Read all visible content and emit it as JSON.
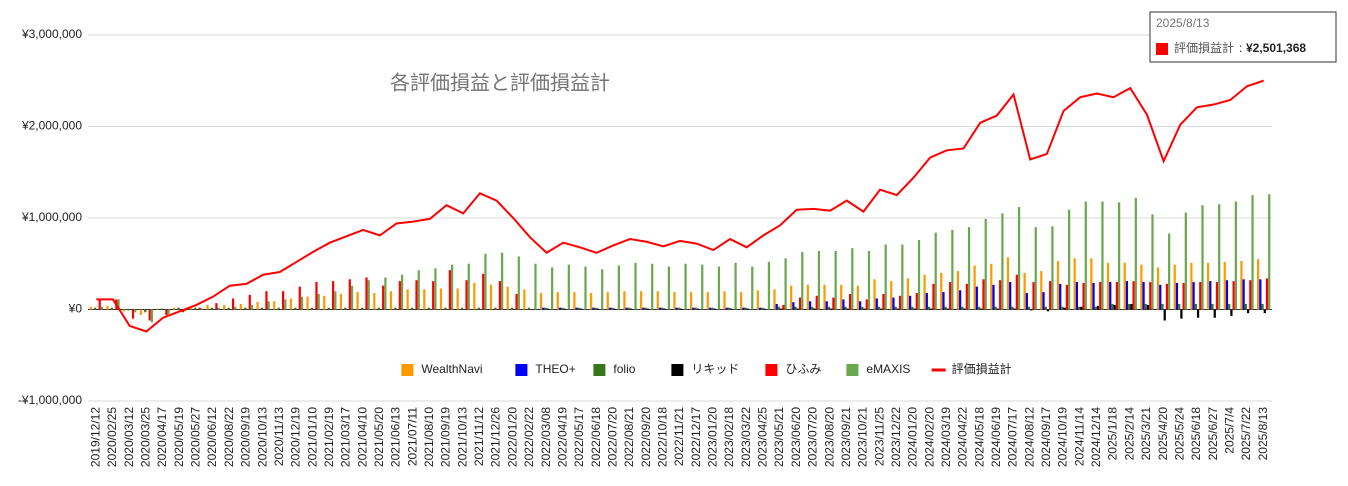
{
  "chart_data": {
    "type": "combo",
    "title": "各評価損益と評価損益計",
    "categories": [
      "2019/12/12",
      "2020/02/25",
      "2020/03/12",
      "2020/03/25",
      "2020/04/17",
      "2020/05/19",
      "2020/05/27",
      "2020/06/12",
      "2020/08/22",
      "2020/09/19",
      "2020/10/13",
      "2020/11/13",
      "2020/12/19",
      "2021/01/10",
      "2021/02/19",
      "2021/03/17",
      "2021/04/10",
      "2021/05/20",
      "2021/06/13",
      "2021/07/11",
      "2021/08/10",
      "2021/09/19",
      "2021/10/13",
      "2021/11/12",
      "2021/12/26",
      "2022/01/20",
      "2022/02/22",
      "2022/03/08",
      "2022/04/19",
      "2022/05/17",
      "2022/06/18",
      "2022/07/20",
      "2022/08/21",
      "2022/09/20",
      "2022/10/18",
      "2022/11/21",
      "2022/12/17",
      "2023/01/20",
      "2023/02/18",
      "2023/03/22",
      "2023/04/25",
      "2023/05/21",
      "2023/06/20",
      "2023/07/20",
      "2023/08/20",
      "2023/09/21",
      "2023/10/21",
      "2023/11/25",
      "2023/12/22",
      "2024/01/20",
      "2024/02/20",
      "2024/03/19",
      "2024/04/22",
      "2024/05/18",
      "2024/06/19",
      "2024/07/17",
      "2024/08/12",
      "2024/09/17",
      "2024/10/19",
      "2024/11/14",
      "2024/12/14",
      "2025/1/18",
      "2025/2/14",
      "2025/3/21",
      "2025/4/20",
      "2025/5/24",
      "2025/6/18",
      "2025/6/27",
      "2025/7/4",
      "2025/7/22",
      "2025/8/13"
    ],
    "series": [
      {
        "name": "WealthNavi",
        "color": "#ff9900",
        "kind": "bar",
        "values": [
          30000,
          40000,
          -20000,
          -60000,
          10000,
          20000,
          20000,
          50000,
          50000,
          60000,
          80000,
          90000,
          120000,
          140000,
          150000,
          170000,
          190000,
          180000,
          200000,
          220000,
          220000,
          230000,
          230000,
          290000,
          270000,
          250000,
          220000,
          180000,
          190000,
          190000,
          180000,
          190000,
          200000,
          200000,
          200000,
          190000,
          190000,
          190000,
          200000,
          190000,
          210000,
          220000,
          260000,
          270000,
          270000,
          270000,
          260000,
          330000,
          310000,
          340000,
          380000,
          400000,
          420000,
          480000,
          500000,
          570000,
          400000,
          420000,
          530000,
          560000,
          560000,
          510000,
          510000,
          490000,
          460000,
          490000,
          510000,
          510000,
          520000,
          530000,
          550000
        ]
      },
      {
        "name": "THEO+",
        "color": "#0000ff",
        "kind": "bar",
        "values": [
          0,
          0,
          0,
          0,
          0,
          0,
          0,
          0,
          0,
          0,
          0,
          0,
          0,
          0,
          0,
          0,
          0,
          0,
          0,
          0,
          0,
          0,
          0,
          0,
          0,
          0,
          0,
          20000,
          20000,
          20000,
          20000,
          20000,
          20000,
          20000,
          20000,
          20000,
          20000,
          20000,
          20000,
          20000,
          20000,
          60000,
          80000,
          90000,
          90000,
          110000,
          90000,
          120000,
          130000,
          150000,
          180000,
          190000,
          210000,
          250000,
          270000,
          300000,
          180000,
          190000,
          280000,
          300000,
          290000,
          300000,
          310000,
          300000,
          270000,
          290000,
          300000,
          310000,
          320000,
          330000,
          330000
        ]
      },
      {
        "name": "folio",
        "color": "#38761d",
        "kind": "bar",
        "values": [
          20000,
          20000,
          -10000,
          -30000,
          10000,
          20000,
          20000,
          20000,
          20000,
          20000,
          20000,
          20000,
          20000,
          20000,
          20000,
          20000,
          20000,
          20000,
          20000,
          20000,
          20000,
          20000,
          20000,
          20000,
          20000,
          20000,
          20000,
          20000,
          20000,
          20000,
          20000,
          20000,
          20000,
          20000,
          20000,
          20000,
          20000,
          20000,
          20000,
          20000,
          20000,
          30000,
          30000,
          30000,
          30000,
          30000,
          30000,
          30000,
          30000,
          30000,
          30000,
          30000,
          30000,
          30000,
          30000,
          30000,
          30000,
          30000,
          30000,
          30000,
          30000,
          60000,
          60000,
          60000,
          60000,
          60000,
          60000,
          60000,
          60000,
          60000,
          60000
        ]
      },
      {
        "name": "リキッド",
        "color": "#000000",
        "kind": "bar",
        "values": [
          0,
          0,
          0,
          0,
          0,
          0,
          0,
          0,
          0,
          0,
          0,
          0,
          0,
          0,
          0,
          0,
          0,
          0,
          0,
          0,
          0,
          0,
          0,
          0,
          0,
          0,
          0,
          10000,
          10000,
          10000,
          10000,
          10000,
          10000,
          10000,
          10000,
          10000,
          10000,
          10000,
          10000,
          10000,
          10000,
          10000,
          10000,
          10000,
          10000,
          10000,
          10000,
          10000,
          10000,
          10000,
          10000,
          10000,
          10000,
          10000,
          10000,
          10000,
          -10000,
          -20000,
          20000,
          30000,
          40000,
          50000,
          60000,
          50000,
          -120000,
          -100000,
          -90000,
          -90000,
          -70000,
          -40000,
          -40000
        ]
      },
      {
        "name": "ひふみ",
        "color": "#ff0000",
        "kind": "bar",
        "values": [
          110000,
          110000,
          -100000,
          -120000,
          -60000,
          -30000,
          20000,
          70000,
          120000,
          160000,
          200000,
          200000,
          250000,
          300000,
          310000,
          330000,
          350000,
          260000,
          310000,
          320000,
          310000,
          430000,
          320000,
          390000,
          310000,
          170000,
          0,
          0,
          0,
          0,
          0,
          0,
          0,
          0,
          0,
          0,
          0,
          0,
          0,
          0,
          0,
          50000,
          130000,
          150000,
          130000,
          170000,
          110000,
          170000,
          150000,
          180000,
          280000,
          300000,
          280000,
          330000,
          320000,
          380000,
          300000,
          310000,
          270000,
          290000,
          300000,
          300000,
          310000,
          300000,
          280000,
          290000,
          300000,
          300000,
          310000,
          320000,
          340000
        ]
      },
      {
        "name": "eMAXIS",
        "color": "#6aa84f",
        "kind": "bar",
        "values": [
          30000,
          110000,
          -30000,
          -140000,
          -50000,
          -20000,
          10000,
          20000,
          30000,
          50000,
          90000,
          110000,
          140000,
          170000,
          200000,
          260000,
          320000,
          350000,
          380000,
          430000,
          450000,
          490000,
          500000,
          610000,
          620000,
          580000,
          500000,
          460000,
          490000,
          470000,
          440000,
          480000,
          510000,
          500000,
          470000,
          500000,
          490000,
          470000,
          510000,
          470000,
          520000,
          560000,
          630000,
          640000,
          640000,
          670000,
          640000,
          710000,
          710000,
          760000,
          840000,
          870000,
          900000,
          990000,
          1050000,
          1120000,
          900000,
          910000,
          1090000,
          1180000,
          1180000,
          1170000,
          1220000,
          1040000,
          830000,
          1060000,
          1140000,
          1150000,
          1180000,
          1250000,
          1260000
        ]
      },
      {
        "name": "評価損益計",
        "color": "#ff0000",
        "kind": "line",
        "values": [
          110000,
          110000,
          -180000,
          -240000,
          -90000,
          -20000,
          50000,
          140000,
          260000,
          280000,
          380000,
          410000,
          520000,
          630000,
          730000,
          800000,
          870000,
          810000,
          940000,
          960000,
          990000,
          1140000,
          1050000,
          1270000,
          1190000,
          1000000,
          790000,
          620000,
          730000,
          680000,
          620000,
          700000,
          770000,
          740000,
          690000,
          750000,
          720000,
          650000,
          770000,
          680000,
          810000,
          920000,
          1090000,
          1100000,
          1080000,
          1190000,
          1070000,
          1310000,
          1250000,
          1440000,
          1660000,
          1740000,
          1760000,
          2040000,
          2120000,
          2350000,
          1640000,
          1700000,
          2170000,
          2320000,
          2360000,
          2320000,
          2420000,
          2130000,
          1620000,
          2020000,
          2210000,
          2240000,
          2290000,
          2440000,
          2501368
        ]
      }
    ],
    "ylim": [
      -1000000,
      3000000
    ],
    "yticks": [
      {
        "value": -1000000,
        "label": "-¥1,000,000"
      },
      {
        "value": 0,
        "label": "¥0"
      },
      {
        "value": 1000000,
        "label": "¥1,000,000"
      },
      {
        "value": 2000000,
        "label": "¥2,000,000"
      },
      {
        "value": 3000000,
        "label": "¥3,000,000"
      }
    ],
    "grid": true,
    "legend": "bottom",
    "tooltip": {
      "index": 70,
      "series": 6,
      "value_label": "¥2,501,368"
    }
  }
}
